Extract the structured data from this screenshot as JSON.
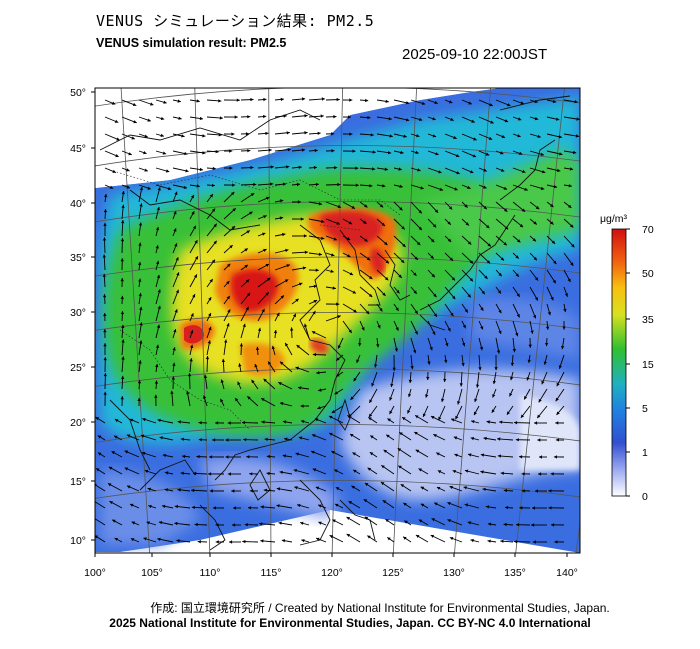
{
  "title_jp": "VENUS シミュレーション結果: PM2.5",
  "title_en": "VENUS simulation result: PM2.5",
  "datetime": "2025-09-10 22:00JST",
  "credit_line1": "作成: 国立環境研究所 / Created by National Institute for Environmental Studies, Japan.",
  "credit_line2": "2025 National Institute for Environmental Studies, Japan. CC BY-NC 4.0 International",
  "map": {
    "lon_ticks": [
      "100°",
      "105°",
      "110°",
      "115°",
      "120°",
      "125°",
      "130°",
      "135°",
      "140°"
    ],
    "lat_ticks": [
      "50°",
      "45°",
      "40°",
      "35°",
      "30°",
      "25°",
      "20°",
      "15°",
      "10°"
    ]
  },
  "colorbar": {
    "unit": "μg/m³",
    "labels": [
      "70",
      "50",
      "35",
      "15",
      "5",
      "1",
      "0"
    ],
    "colors": [
      "#d01010",
      "#f05010",
      "#f8c010",
      "#20c020",
      "#20a0e0",
      "#2050e0",
      "#f4f4ff"
    ]
  }
}
